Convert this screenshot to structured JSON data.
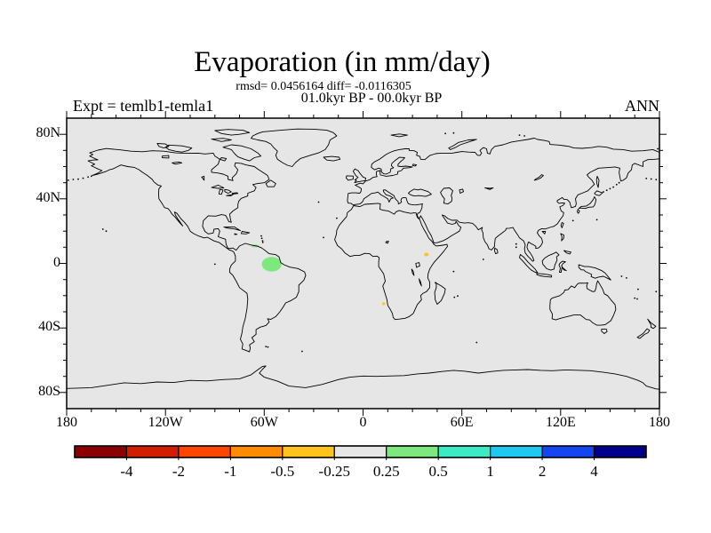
{
  "title": "Evaporation (in mm/day)",
  "subtitle_stats": "rmsd= 0.0456164 diff= -0.0116305",
  "subtitle_period": "01.0kyr BP - 00.0kyr BP",
  "experiment_label": "Expt = temlb1-temla1",
  "season_label": "ANN",
  "axes": {
    "lat_ticks": [
      "80N",
      "40N",
      "0",
      "40S",
      "80S"
    ],
    "lon_ticks": [
      "180",
      "120W",
      "60W",
      "0",
      "60E",
      "120E",
      "180"
    ]
  },
  "colorbar": {
    "boundary_labels": [
      "-4",
      "-2",
      "-1",
      "-0.5",
      "-0.25",
      "0.25",
      "0.5",
      "1",
      "2",
      "4"
    ],
    "colors": [
      "#8b0000",
      "#d21e00",
      "#ff4600",
      "#ff8c00",
      "#ffc31e",
      "#e6e6e6",
      "#7de87d",
      "#3cebc3",
      "#1ec8f0",
      "#1446f0",
      "#00008c"
    ]
  },
  "map": {
    "background_color": "#e6e6e6",
    "coastline_color": "#000000"
  },
  "chart_data": {
    "type": "heatmap",
    "title": "Evaporation (in mm/day)",
    "subtitle": "01.0kyr BP - 00.0kyr BP",
    "stats": {
      "rmsd": 0.0456164,
      "diff": -0.0116305
    },
    "projection": "equirectangular world map, lon -180 to 180, lat -90 to 90",
    "x_ticks_deg": [
      -180,
      -120,
      -60,
      0,
      60,
      120,
      180
    ],
    "y_ticks_deg": [
      80,
      40,
      0,
      -40,
      -80
    ],
    "colorbar_bounds": [
      -4,
      -2,
      -1,
      -0.5,
      -0.25,
      0.25,
      0.5,
      1,
      2,
      4
    ],
    "background_bin": "-0.25 to 0.25 (near zero difference over most of the globe)",
    "anomalies": [
      {
        "region": "Amazon basin",
        "lon": -55.5,
        "lat": -0.5,
        "rx_deg": 6.0,
        "ry_deg": 4.5,
        "value_range": "0.25 to 0.5",
        "color": "#7de87d"
      },
      {
        "region": "Venezuela coast",
        "lon": -65.5,
        "lat": 10.8,
        "rx_deg": 2.2,
        "ry_deg": 0.8,
        "value_range": "0.25 to 0.5",
        "color": "#7de87d"
      },
      {
        "region": "East Africa",
        "lon": 38.5,
        "lat": 5.5,
        "rx_deg": 1.4,
        "ry_deg": 1.1,
        "value_range": "-0.5 to -0.25",
        "color": "#ffc31e"
      },
      {
        "region": "Southwest Africa coast",
        "lon": 12.5,
        "lat": -25.0,
        "rx_deg": 0.9,
        "ry_deg": 0.9,
        "value_range": "-0.5 to -0.25",
        "color": "#ffc31e"
      }
    ]
  }
}
